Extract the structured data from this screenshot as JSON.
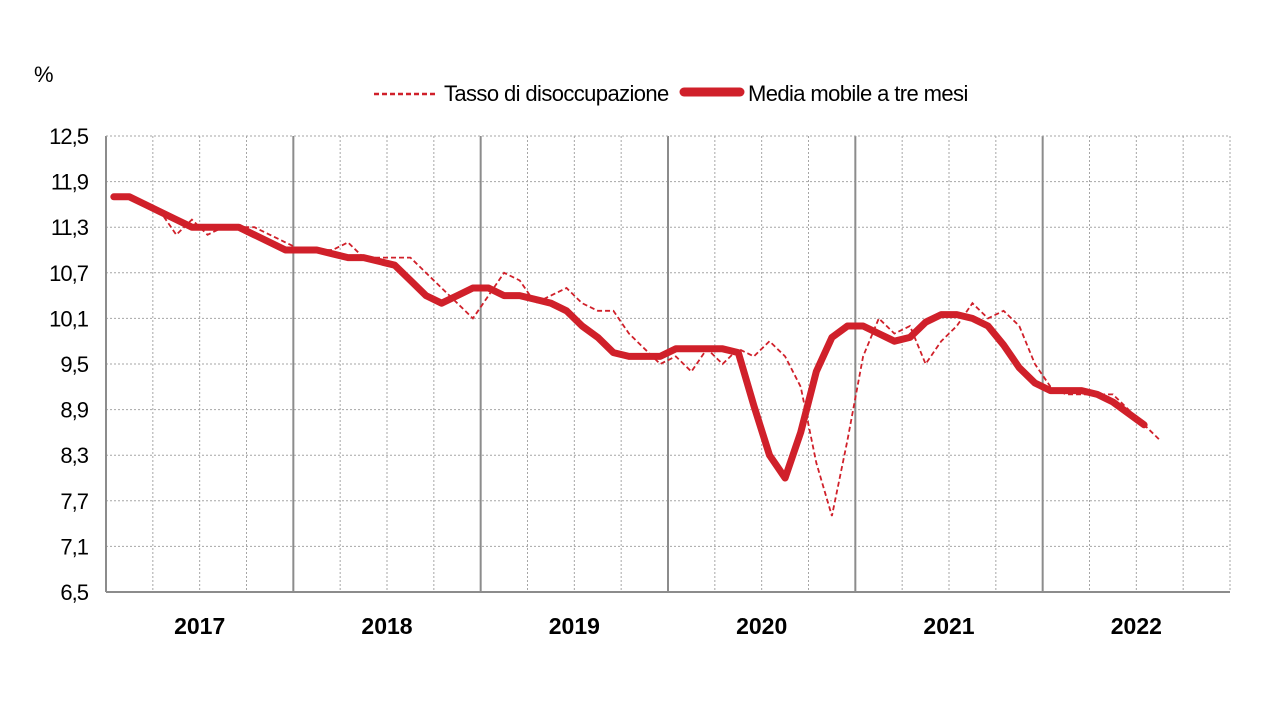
{
  "chart_data": {
    "type": "line",
    "unit": "%",
    "ylim": [
      6.5,
      12.5
    ],
    "yticks": [
      "12,5",
      "11,9",
      "11,3",
      "10,7",
      "10,1",
      "9,5",
      "8,9",
      "8,3",
      "7,7",
      "7,1",
      "6,5"
    ],
    "ytick_values": [
      12.5,
      11.9,
      11.3,
      10.7,
      10.1,
      9.5,
      8.9,
      8.3,
      7.7,
      7.1,
      6.5
    ],
    "years": [
      "2017",
      "2018",
      "2019",
      "2020",
      "2021",
      "2022"
    ],
    "months_per_year": 12,
    "grid": true,
    "legend_position": "top",
    "series": [
      {
        "name": "Tasso di disoccupazione",
        "style": "dashed",
        "color": "#d0202a",
        "values": [
          11.7,
          11.7,
          11.6,
          11.5,
          11.2,
          11.4,
          11.2,
          11.3,
          11.3,
          11.3,
          11.2,
          11.1,
          11.0,
          11.0,
          11.0,
          11.1,
          10.9,
          10.9,
          10.9,
          10.9,
          10.7,
          10.5,
          10.3,
          10.1,
          10.4,
          10.7,
          10.6,
          10.3,
          10.4,
          10.5,
          10.3,
          10.2,
          10.2,
          9.9,
          9.7,
          9.5,
          9.6,
          9.4,
          9.7,
          9.5,
          9.7,
          9.6,
          9.8,
          9.6,
          9.2,
          8.2,
          7.5,
          8.5,
          9.6,
          10.1,
          9.9,
          10.0,
          9.5,
          9.8,
          10.0,
          10.3,
          10.1,
          10.2,
          10.0,
          9.5,
          9.2,
          9.1,
          9.1,
          9.1,
          9.1,
          8.9,
          8.7,
          8.5
        ]
      },
      {
        "name": "Media mobile a tre mesi",
        "style": "solid",
        "color": "#d0202a",
        "values": [
          11.7,
          11.7,
          11.6,
          11.5,
          11.4,
          11.3,
          11.3,
          11.3,
          11.3,
          11.2,
          11.1,
          11.0,
          11.0,
          11.0,
          10.95,
          10.9,
          10.9,
          10.85,
          10.8,
          10.6,
          10.4,
          10.3,
          10.4,
          10.5,
          10.5,
          10.4,
          10.4,
          10.35,
          10.3,
          10.2,
          10.0,
          9.85,
          9.65,
          9.6,
          9.6,
          9.6,
          9.7,
          9.7,
          9.7,
          9.7,
          9.65,
          8.95,
          8.3,
          8.0,
          8.6,
          9.4,
          9.85,
          10.0,
          10.0,
          9.9,
          9.8,
          9.85,
          10.05,
          10.15,
          10.15,
          10.1,
          10.0,
          9.75,
          9.45,
          9.25,
          9.15,
          9.15,
          9.15,
          9.1,
          9.0,
          8.85,
          8.7
        ]
      }
    ]
  }
}
